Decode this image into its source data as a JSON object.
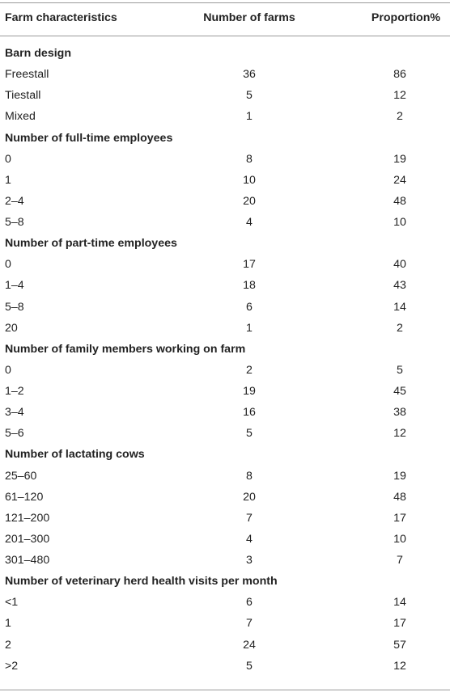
{
  "table": {
    "headers": {
      "characteristic": "Farm characteristics",
      "count": "Number of farms",
      "proportion": "Proportion%"
    },
    "sections": [
      {
        "title": "Barn design",
        "rows": [
          {
            "label": "Freestall",
            "count": "36",
            "proportion": "86"
          },
          {
            "label": "Tiestall",
            "count": "5",
            "proportion": "12"
          },
          {
            "label": "Mixed",
            "count": "1",
            "proportion": "2"
          }
        ]
      },
      {
        "title": "Number of full-time employees",
        "rows": [
          {
            "label": "0",
            "count": "8",
            "proportion": "19"
          },
          {
            "label": "1",
            "count": "10",
            "proportion": "24"
          },
          {
            "label": "2–4",
            "count": "20",
            "proportion": "48"
          },
          {
            "label": "5–8",
            "count": "4",
            "proportion": "10"
          }
        ]
      },
      {
        "title": "Number of part-time employees",
        "rows": [
          {
            "label": "0",
            "count": "17",
            "proportion": "40"
          },
          {
            "label": "1–4",
            "count": "18",
            "proportion": "43"
          },
          {
            "label": "5–8",
            "count": "6",
            "proportion": "14"
          },
          {
            "label": "20",
            "count": "1",
            "proportion": "2"
          }
        ]
      },
      {
        "title": "Number of family members working on farm",
        "rows": [
          {
            "label": "0",
            "count": "2",
            "proportion": "5"
          },
          {
            "label": "1–2",
            "count": "19",
            "proportion": "45"
          },
          {
            "label": "3–4",
            "count": "16",
            "proportion": "38"
          },
          {
            "label": "5–6",
            "count": "5",
            "proportion": "12"
          }
        ]
      },
      {
        "title": "Number of lactating cows",
        "rows": [
          {
            "label": "25–60",
            "count": "8",
            "proportion": "19"
          },
          {
            "label": "61–120",
            "count": "20",
            "proportion": "48"
          },
          {
            "label": "121–200",
            "count": "7",
            "proportion": "17"
          },
          {
            "label": "201–300",
            "count": "4",
            "proportion": "10"
          },
          {
            "label": "301–480",
            "count": "3",
            "proportion": "7"
          }
        ]
      },
      {
        "title": "Number of veterinary herd health visits per month",
        "rows": [
          {
            "label": "<1",
            "count": "6",
            "proportion": "14"
          },
          {
            "label": "1",
            "count": "7",
            "proportion": "17"
          },
          {
            "label": "2",
            "count": "24",
            "proportion": "57"
          },
          {
            "label": ">2",
            "count": "5",
            "proportion": "12"
          }
        ]
      }
    ]
  }
}
